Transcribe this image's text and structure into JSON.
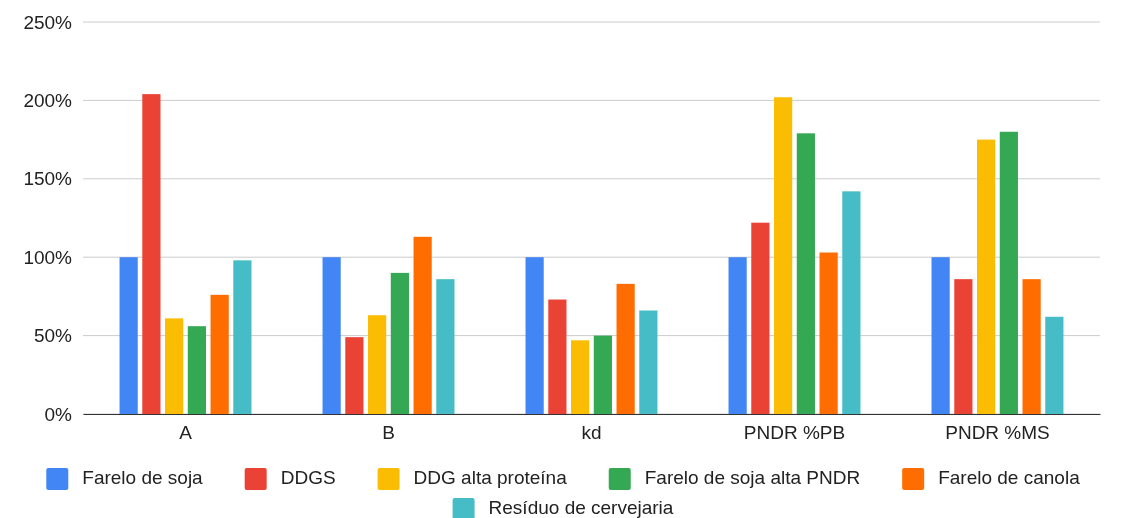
{
  "chart_data": {
    "type": "bar",
    "categories": [
      "A",
      "B",
      "kd",
      "PNDR %PB",
      "PNDR %MS"
    ],
    "series": [
      {
        "name": "Farelo de soja",
        "color": "#4285f4",
        "values": [
          100,
          100,
          100,
          100,
          100
        ]
      },
      {
        "name": "DDGS",
        "color": "#ea4335",
        "values": [
          204,
          49,
          73,
          122,
          86
        ]
      },
      {
        "name": "DDG alta proteína",
        "color": "#fbbc04",
        "values": [
          61,
          63,
          47,
          202,
          175
        ]
      },
      {
        "name": "Farelo de soja alta PNDR",
        "color": "#34a853",
        "values": [
          56,
          90,
          50,
          179,
          180
        ]
      },
      {
        "name": "Farelo de canola",
        "color": "#ff6d01",
        "values": [
          76,
          113,
          83,
          103,
          86
        ]
      },
      {
        "name": "Resíduo de cervejaria",
        "color": "#46bdc6",
        "values": [
          98,
          86,
          66,
          142,
          62
        ]
      }
    ],
    "ylim": [
      0,
      250
    ],
    "yticks": [
      {
        "value": 0,
        "label": "0%"
      },
      {
        "value": 50,
        "label": "50%"
      },
      {
        "value": 100,
        "label": "100%"
      },
      {
        "value": 150,
        "label": "150%"
      },
      {
        "value": 200,
        "label": "200%"
      },
      {
        "value": 250,
        "label": "250%"
      }
    ],
    "grid": "y",
    "legend": "bottom"
  }
}
